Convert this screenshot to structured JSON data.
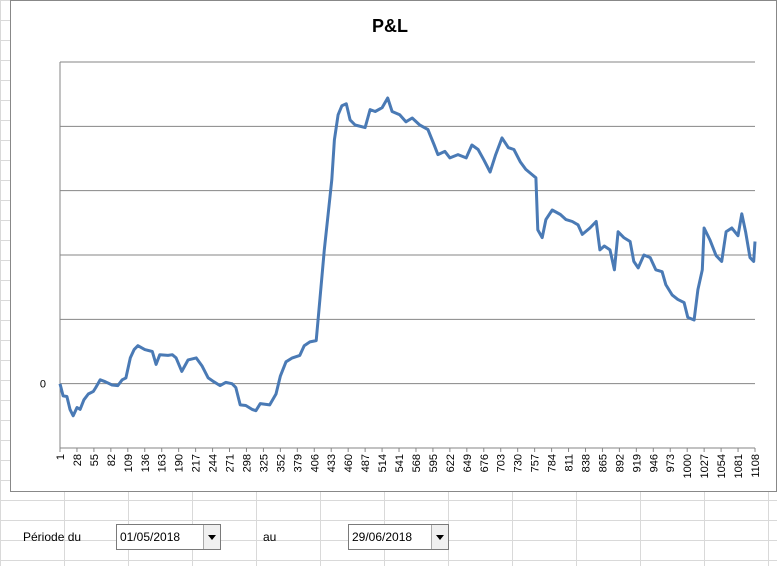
{
  "chart_data": {
    "type": "line",
    "title": "P&L",
    "x": [
      1,
      6,
      12,
      17,
      22,
      28,
      33,
      39,
      46,
      54,
      58,
      65,
      73,
      84,
      93,
      100,
      106,
      113,
      119,
      125,
      136,
      148,
      154,
      160,
      173,
      180,
      186,
      195,
      205,
      218,
      227,
      237,
      246,
      256,
      265,
      275,
      281,
      288,
      297,
      307,
      313,
      320,
      335,
      345,
      352,
      361,
      371,
      383,
      390,
      399,
      409,
      415,
      422,
      428,
      434,
      438,
      444,
      450,
      457,
      463,
      471,
      487,
      495,
      503,
      514,
      523,
      530,
      542,
      552,
      562,
      574,
      587,
      597,
      603,
      614,
      622,
      635,
      648,
      657,
      667,
      676,
      686,
      695,
      705,
      715,
      724,
      734,
      743,
      753,
      759,
      762,
      769,
      775,
      785,
      798,
      807,
      817,
      826,
      833,
      845,
      855,
      861,
      868,
      877,
      884,
      890,
      899,
      909,
      915,
      922,
      931,
      941,
      950,
      960,
      966,
      976,
      985,
      995,
      1001,
      1011,
      1017,
      1024,
      1027,
      1036,
      1046,
      1055,
      1062,
      1071,
      1081,
      1087,
      1093,
      1100,
      1106,
      1108
    ],
    "series": [
      {
        "color": "#4a7ab5",
        "values": [
          0,
          -0.19,
          -0.2,
          -0.4,
          -0.5,
          -0.37,
          -0.4,
          -0.25,
          -0.16,
          -0.12,
          -0.06,
          0.06,
          0.03,
          -0.02,
          -0.03,
          0.06,
          0.09,
          0.4,
          0.53,
          0.59,
          0.53,
          0.5,
          0.3,
          0.45,
          0.44,
          0.45,
          0.4,
          0.19,
          0.37,
          0.4,
          0.28,
          0.09,
          0.03,
          -0.03,
          0.02,
          0,
          -0.06,
          -0.33,
          -0.34,
          -0.4,
          -0.42,
          -0.31,
          -0.33,
          -0.16,
          0.12,
          0.34,
          0.4,
          0.44,
          0.59,
          0.65,
          0.67,
          1.31,
          2.08,
          2.63,
          3.17,
          3.79,
          4.18,
          4.32,
          4.35,
          4.1,
          4.02,
          3.98,
          4.26,
          4.23,
          4.29,
          4.44,
          4.23,
          4.18,
          4.07,
          4.13,
          4.02,
          3.95,
          3.71,
          3.56,
          3.61,
          3.51,
          3.56,
          3.51,
          3.71,
          3.64,
          3.48,
          3.29,
          3.56,
          3.82,
          3.67,
          3.64,
          3.45,
          3.33,
          3.25,
          3.2,
          2.39,
          2.27,
          2.55,
          2.7,
          2.63,
          2.55,
          2.52,
          2.47,
          2.32,
          2.42,
          2.52,
          2.08,
          2.14,
          2.08,
          1.77,
          2.36,
          2.27,
          2.21,
          1.9,
          1.8,
          2.0,
          1.96,
          1.77,
          1.74,
          1.54,
          1.38,
          1.31,
          1.26,
          1.03,
          0.99,
          1.46,
          1.77,
          2.42,
          2.24,
          1.99,
          1.9,
          2.36,
          2.42,
          2.3,
          2.64,
          2.36,
          1.96,
          1.9,
          2.21
        ]
      }
    ],
    "xlim": [
      1,
      1108
    ],
    "xticks": [
      1,
      28,
      55,
      82,
      109,
      136,
      163,
      190,
      217,
      244,
      271,
      298,
      325,
      352,
      379,
      406,
      433,
      460,
      487,
      514,
      541,
      568,
      595,
      622,
      649,
      676,
      703,
      730,
      757,
      784,
      811,
      838,
      865,
      892,
      919,
      946,
      973,
      1000,
      1027,
      1054,
      1081,
      1108
    ],
    "ylim": [
      -1,
      5
    ],
    "yticks": [
      0
    ],
    "grid_lines": [
      1,
      2,
      3,
      4,
      5
    ]
  },
  "form": {
    "label": "Période du",
    "from": "01/05/2018",
    "to_label": "au",
    "to": "29/06/2018"
  }
}
